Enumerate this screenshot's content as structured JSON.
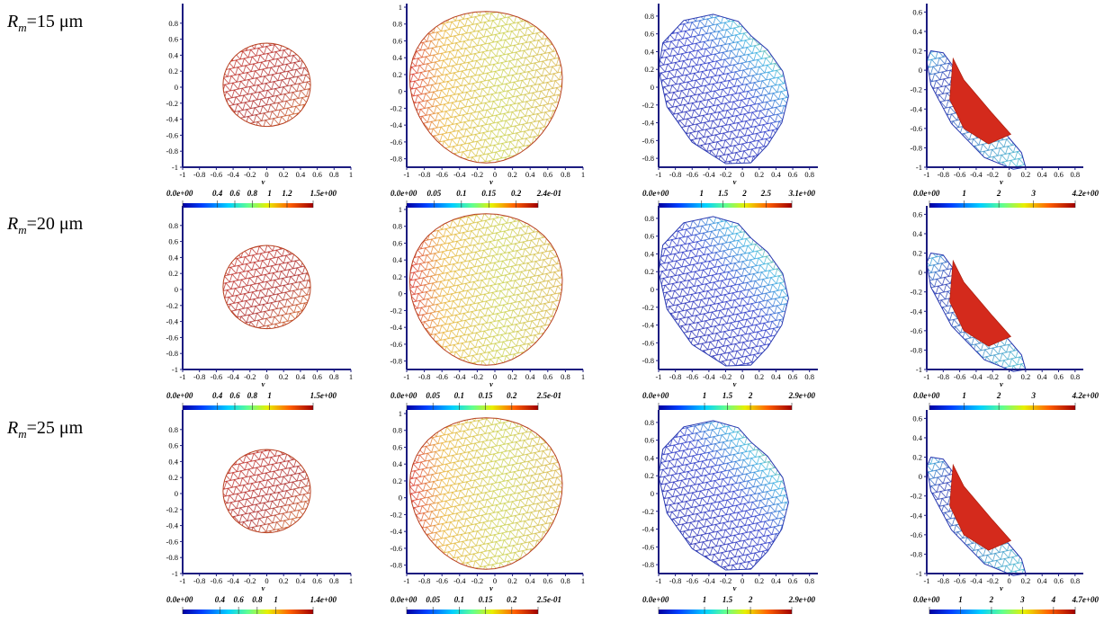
{
  "row_labels": [
    {
      "symbol": "R",
      "subscript": "m",
      "text": "=15 μm"
    },
    {
      "symbol": "R",
      "subscript": "m",
      "text": "=20 μm"
    },
    {
      "symbol": "R",
      "subscript": "m",
      "text": "=25 μm"
    }
  ],
  "chart_data": [
    {
      "type": "mesh",
      "xlabel": "v",
      "xlim": [
        -1,
        1
      ],
      "ylim": [
        -1,
        1
      ],
      "xticks": [
        -1,
        -0.8,
        -0.6,
        -0.4,
        -0.2,
        0,
        0.2,
        0.4,
        0.6,
        0.8,
        1
      ],
      "yticks": [
        -1,
        -0.8,
        -0.6,
        -0.4,
        -0.2,
        0,
        0.2,
        0.4,
        0.6,
        0.8
      ],
      "colorbar": {
        "lim": [
          0,
          1.5
        ],
        "ticks": [
          {
            "value": 0,
            "label": "0.0e+00"
          },
          0.4,
          0.6,
          0.8,
          1,
          1.2,
          {
            "value": 1.5,
            "label": "1.5e+00"
          }
        ]
      }
    },
    {
      "type": "mesh",
      "xlabel": "v",
      "xlim": [
        -1,
        1
      ],
      "ylim": [
        -0.9,
        1
      ],
      "xticks": [
        -1,
        -0.8,
        -0.6,
        -0.4,
        -0.2,
        0,
        0.2,
        0.4,
        0.6,
        0.8,
        1
      ],
      "yticks": [
        -0.8,
        -0.6,
        -0.4,
        -0.2,
        0,
        0.2,
        0.4,
        0.6,
        0.8,
        1
      ],
      "colorbar": {
        "lim": [
          0,
          0.24
        ],
        "ticks": [
          {
            "value": 0,
            "label": "0.0e+00"
          },
          0.05,
          0.1,
          0.15,
          0.2,
          {
            "value": 0.24,
            "label": "2.4e-01"
          }
        ]
      }
    },
    {
      "type": "mesh",
      "xlabel": "v",
      "xlim": [
        -1,
        0.9
      ],
      "ylim": [
        -0.9,
        0.9
      ],
      "xticks": [
        -1,
        -0.8,
        -0.6,
        -0.4,
        -0.2,
        0,
        0.2,
        0.4,
        0.6,
        0.8
      ],
      "yticks": [
        -0.8,
        -0.6,
        -0.4,
        -0.2,
        0,
        0.2,
        0.4,
        0.6,
        0.8
      ],
      "colorbar": {
        "lim": [
          0,
          3.1
        ],
        "ticks": [
          {
            "value": 0,
            "label": "0.0e+00"
          },
          1,
          1.5,
          2,
          2.5,
          {
            "value": 3.1,
            "label": "3.1e+00"
          }
        ]
      }
    },
    {
      "type": "mesh",
      "xlabel": "v",
      "xlim": [
        -1,
        0.9
      ],
      "ylim": [
        -1,
        0.65
      ],
      "xticks": [
        -1,
        -0.8,
        -0.6,
        -0.4,
        -0.2,
        0,
        0.2,
        0.4,
        0.6,
        0.8
      ],
      "yticks": [
        -1,
        -0.8,
        -0.6,
        -0.4,
        -0.2,
        0,
        0.2,
        0.4,
        0.6
      ],
      "colorbar": {
        "lim": [
          0,
          4.2
        ],
        "ticks": [
          {
            "value": 0,
            "label": "0.0e+00"
          },
          1,
          2,
          3,
          {
            "value": 4.2,
            "label": "4.2e+00"
          }
        ]
      }
    },
    {
      "type": "mesh",
      "xlabel": "v",
      "xlim": [
        -1,
        1
      ],
      "ylim": [
        -1,
        1
      ],
      "xticks": [
        -1,
        -0.8,
        -0.6,
        -0.4,
        -0.2,
        0,
        0.2,
        0.4,
        0.6,
        0.8,
        1
      ],
      "yticks": [
        -1,
        -0.8,
        -0.6,
        -0.4,
        -0.2,
        0,
        0.2,
        0.4,
        0.6,
        0.8
      ],
      "colorbar": {
        "lim": [
          0,
          1.5
        ],
        "ticks": [
          {
            "value": 0,
            "label": "0.0e+00"
          },
          0.4,
          0.6,
          0.8,
          1,
          {
            "value": 1.5,
            "label": "1.5e+00"
          }
        ]
      }
    },
    {
      "type": "mesh",
      "xlabel": "v",
      "xlim": [
        -1,
        1
      ],
      "ylim": [
        -0.9,
        1
      ],
      "xticks": [
        -1,
        -0.8,
        -0.6,
        -0.4,
        -0.2,
        0,
        0.2,
        0.4,
        0.6,
        0.8,
        1
      ],
      "yticks": [
        -0.8,
        -0.6,
        -0.4,
        -0.2,
        0,
        0.2,
        0.4,
        0.6,
        0.8,
        1
      ],
      "colorbar": {
        "lim": [
          0,
          0.25
        ],
        "ticks": [
          {
            "value": 0,
            "label": "0.0e+00"
          },
          0.05,
          0.1,
          0.15,
          0.2,
          {
            "value": 0.25,
            "label": "2.5e-01"
          }
        ]
      }
    },
    {
      "type": "mesh",
      "xlabel": "v",
      "xlim": [
        -1,
        0.9
      ],
      "ylim": [
        -0.9,
        0.9
      ],
      "xticks": [
        -1,
        -0.8,
        -0.6,
        -0.4,
        -0.2,
        0,
        0.2,
        0.4,
        0.6,
        0.8
      ],
      "yticks": [
        -0.8,
        -0.6,
        -0.4,
        -0.2,
        0,
        0.2,
        0.4,
        0.6,
        0.8
      ],
      "colorbar": {
        "lim": [
          0,
          2.9
        ],
        "ticks": [
          {
            "value": 0,
            "label": "0.0e+00"
          },
          1,
          1.5,
          2,
          {
            "value": 2.9,
            "label": "2.9e+00"
          }
        ]
      }
    },
    {
      "type": "mesh",
      "xlabel": "v",
      "xlim": [
        -1,
        0.9
      ],
      "ylim": [
        -1,
        0.65
      ],
      "xticks": [
        -1,
        -0.8,
        -0.6,
        -0.4,
        -0.2,
        0,
        0.2,
        0.4,
        0.6,
        0.8
      ],
      "yticks": [
        -1,
        -0.8,
        -0.6,
        -0.4,
        -0.2,
        0,
        0.2,
        0.4,
        0.6
      ],
      "colorbar": {
        "lim": [
          0,
          4.2
        ],
        "ticks": [
          {
            "value": 0,
            "label": "0.0e+00"
          },
          1,
          2,
          3,
          {
            "value": 4.2,
            "label": "4.2e+00"
          }
        ]
      }
    },
    {
      "type": "mesh",
      "xlabel": "v",
      "xlim": [
        -1,
        1
      ],
      "ylim": [
        -1,
        1
      ],
      "xticks": [
        -1,
        -0.8,
        -0.6,
        -0.4,
        -0.2,
        0,
        0.2,
        0.4,
        0.6,
        0.8,
        1
      ],
      "yticks": [
        -1,
        -0.8,
        -0.6,
        -0.4,
        -0.2,
        0,
        0.2,
        0.4,
        0.6,
        0.8
      ],
      "colorbar": {
        "lim": [
          0,
          1.4
        ],
        "ticks": [
          {
            "value": 0,
            "label": "0.0e+00"
          },
          0.4,
          0.6,
          0.8,
          1,
          {
            "value": 1.4,
            "label": "1.4e+00"
          }
        ]
      }
    },
    {
      "type": "mesh",
      "xlabel": "v",
      "xlim": [
        -1,
        1
      ],
      "ylim": [
        -0.9,
        1
      ],
      "xticks": [
        -1,
        -0.8,
        -0.6,
        -0.4,
        -0.2,
        0,
        0.2,
        0.4,
        0.6,
        0.8,
        1
      ],
      "yticks": [
        -0.8,
        -0.6,
        -0.4,
        -0.2,
        0,
        0.2,
        0.4,
        0.6,
        0.8,
        1
      ],
      "colorbar": {
        "lim": [
          0,
          0.25
        ],
        "ticks": [
          {
            "value": 0,
            "label": "0.0e+00"
          },
          0.05,
          0.1,
          0.15,
          0.2,
          {
            "value": 0.25,
            "label": "2.5e-01"
          }
        ]
      }
    },
    {
      "type": "mesh",
      "xlabel": "v",
      "xlim": [
        -1,
        0.9
      ],
      "ylim": [
        -0.9,
        0.9
      ],
      "xticks": [
        -1,
        -0.8,
        -0.6,
        -0.4,
        -0.2,
        0,
        0.2,
        0.4,
        0.6,
        0.8
      ],
      "yticks": [
        -0.8,
        -0.6,
        -0.4,
        -0.2,
        0,
        0.2,
        0.4,
        0.6,
        0.8
      ],
      "colorbar": {
        "lim": [
          0,
          2.9
        ],
        "ticks": [
          {
            "value": 0,
            "label": "0.0e+00"
          },
          1,
          1.5,
          2,
          {
            "value": 2.9,
            "label": "2.9e+00"
          }
        ]
      }
    },
    {
      "type": "mesh",
      "xlabel": "v",
      "xlim": [
        -1,
        0.9
      ],
      "ylim": [
        -1,
        0.65
      ],
      "xticks": [
        -1,
        -0.8,
        -0.6,
        -0.4,
        -0.2,
        0,
        0.2,
        0.4,
        0.6,
        0.8
      ],
      "yticks": [
        -1,
        -0.8,
        -0.6,
        -0.4,
        -0.2,
        0,
        0.2,
        0.4,
        0.6
      ],
      "colorbar": {
        "lim": [
          0,
          4.7
        ],
        "ticks": [
          {
            "value": 0,
            "label": "0.0e+00"
          },
          1,
          2,
          3,
          4,
          {
            "value": 4.7,
            "label": "4.7e+00"
          }
        ]
      }
    }
  ]
}
